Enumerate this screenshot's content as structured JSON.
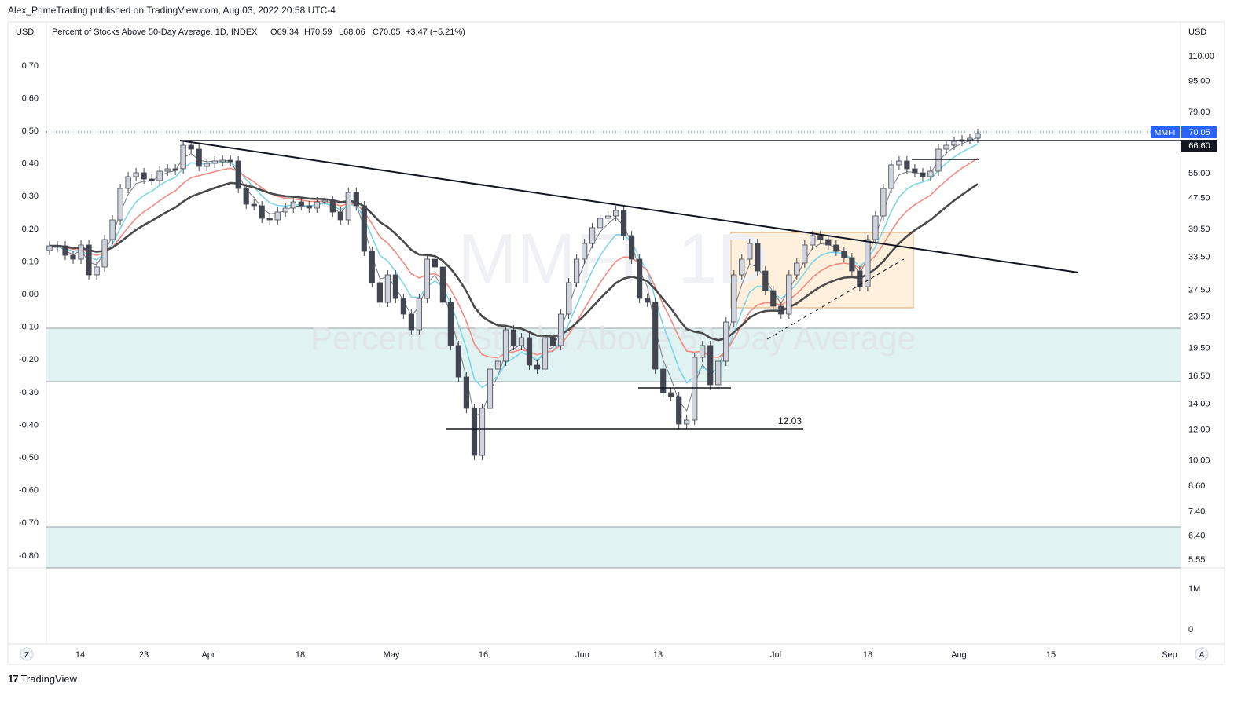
{
  "publisher_line": "Alex_PrimeTrading published on TradingView.com, Aug 03, 2022 20:58 UTC-4",
  "footer_brand": "TradingView",
  "footer_icon": "tradingview-logo-icon",
  "axis_currency_left": "USD",
  "axis_currency_right": "USD",
  "legend": {
    "symbol": "Percent of Stocks Above 50-Day Average, 1D, INDEX",
    "open": "O69.34",
    "high": "H70.59",
    "low": "L68.06",
    "close": "C70.05",
    "change": "+3.47 (+5.21%)"
  },
  "watermark": {
    "big": "MMFI, 1D",
    "small": "Percent of Stocks Above 50-Day Average"
  },
  "price_labels": {
    "last": "70.05",
    "last_tag": "MMFI",
    "resistance": "66.60",
    "annotation_low": "12.03"
  },
  "bottom_buttons": {
    "left": "Z",
    "right": "A"
  },
  "colors": {
    "up_candle": "#d1d4dc",
    "down_candle": "#434651",
    "ema_fast": "#787b86",
    "ema_cyan": "#7fd6e6",
    "ema_red": "#f28b82",
    "sma_dark": "#4a4a4a",
    "zone_fill": "#e0f2f1",
    "box_fill": "#fdebd0",
    "last_tag": "#2962ff"
  },
  "chart_data": {
    "type": "candlestick",
    "title": "Percent of Stocks Above 50-Day Average, 1D, INDEX",
    "left_axis": {
      "ticks": [
        "0.70",
        "0.60",
        "0.50",
        "0.40",
        "0.30",
        "0.20",
        "0.10",
        "0.00",
        "-0.10",
        "-0.20",
        "-0.30",
        "-0.40",
        "-0.50",
        "-0.60",
        "-0.70",
        "-0.80"
      ]
    },
    "right_axis": {
      "scale": "log",
      "ticks": [
        "110.00",
        "95.00",
        "79.00",
        "55.00",
        "47.50",
        "39.50",
        "33.50",
        "27.50",
        "23.50",
        "19.50",
        "16.50",
        "14.00",
        "12.00",
        "10.00",
        "8.60",
        "7.40",
        "6.40",
        "5.55"
      ]
    },
    "volume_axis": {
      "ticks": [
        "1M",
        "0"
      ]
    },
    "x_axis": {
      "ticks": [
        "14",
        "23",
        "Apr",
        "18",
        "May",
        "16",
        "Jun",
        "13",
        "Jul",
        "18",
        "Aug",
        "15",
        "Sep"
      ]
    },
    "horizontal_lines": [
      66.6,
      12.03
    ],
    "zones": [
      {
        "from": 16.5,
        "to": 21.5
      },
      {
        "from": 5.55,
        "to": 6.9
      }
    ],
    "grid": false
  }
}
